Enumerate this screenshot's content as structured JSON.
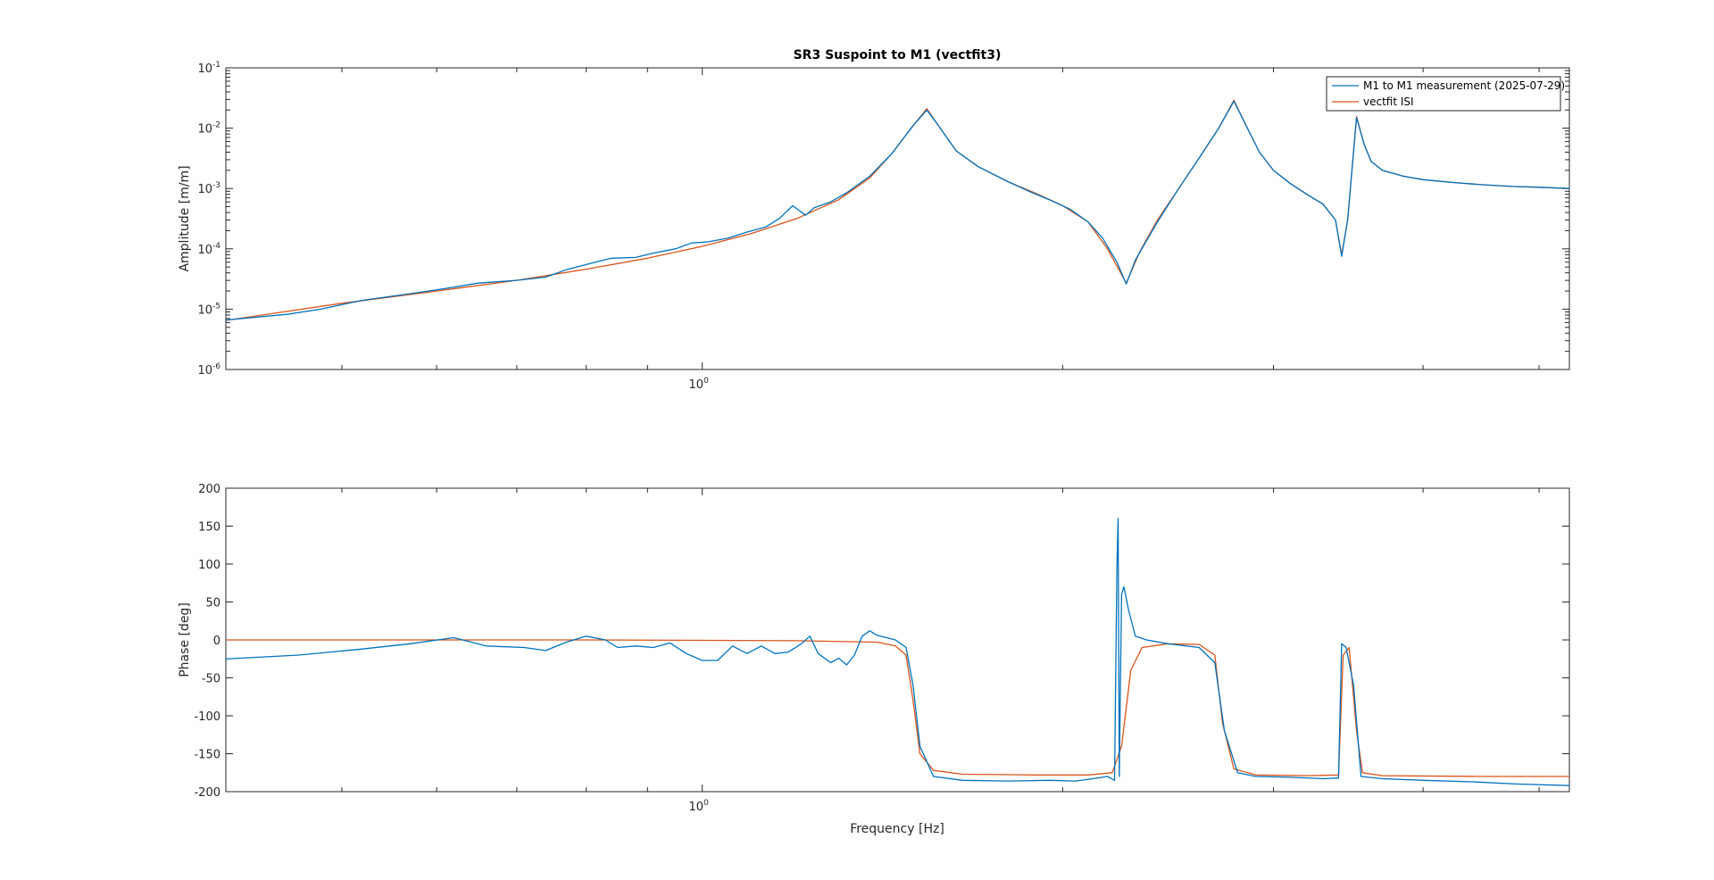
{
  "chart_data": [
    {
      "type": "line",
      "title": "SR3 Suspoint to M1 (vectfit3)",
      "xlabel": "",
      "ylabel": "Amplitude [m/m]",
      "xscale": "log",
      "yscale": "log",
      "xlim": [
        0.4,
        5.3
      ],
      "ylim": [
        1e-06,
        0.1
      ],
      "x_ticks": [
        {
          "base": "10",
          "exp": "0",
          "value": 1
        }
      ],
      "y_ticks": [
        {
          "base": "10",
          "exp": "-1",
          "value": 0.1
        },
        {
          "base": "10",
          "exp": "-2",
          "value": 0.01
        },
        {
          "base": "10",
          "exp": "-3",
          "value": 0.001
        },
        {
          "base": "10",
          "exp": "-4",
          "value": 0.0001
        },
        {
          "base": "10",
          "exp": "-5",
          "value": 1e-05
        },
        {
          "base": "10",
          "exp": "-6",
          "value": 1e-06
        }
      ],
      "grid": false,
      "legend_position": "top-right",
      "series": [
        {
          "name": "M1 to M1 measurement (2025-07-29)",
          "color": "#0072BD",
          "points": [
            [
              0.4,
              6.6e-06
            ],
            [
              0.45,
              8.2e-06
            ],
            [
              0.48,
              1e-05
            ],
            [
              0.52,
              1.4e-05
            ],
            [
              0.57,
              1.8e-05
            ],
            [
              0.61,
              2.2e-05
            ],
            [
              0.65,
              2.7e-05
            ],
            [
              0.7,
              3e-05
            ],
            [
              0.74,
              3.4e-05
            ],
            [
              0.77,
              4.5e-05
            ],
            [
              0.8,
              5.5e-05
            ],
            [
              0.84,
              7e-05
            ],
            [
              0.88,
              7.2e-05
            ],
            [
              0.91,
              8.5e-05
            ],
            [
              0.95,
              0.0001
            ],
            [
              0.98,
              0.000125
            ],
            [
              1.01,
              0.00013
            ],
            [
              1.05,
              0.00015
            ],
            [
              1.09,
              0.00019
            ],
            [
              1.13,
              0.00023
            ],
            [
              1.16,
              0.00032
            ],
            [
              1.19,
              0.00052
            ],
            [
              1.22,
              0.00036
            ],
            [
              1.24,
              0.00048
            ],
            [
              1.28,
              0.0006
            ],
            [
              1.32,
              0.00085
            ],
            [
              1.38,
              0.0016
            ],
            [
              1.44,
              0.0038
            ],
            [
              1.5,
              0.011
            ],
            [
              1.54,
              0.02
            ],
            [
              1.57,
              0.012
            ],
            [
              1.63,
              0.0042
            ],
            [
              1.7,
              0.0023
            ],
            [
              1.8,
              0.0013
            ],
            [
              1.88,
              0.00088
            ],
            [
              1.96,
              0.00062
            ],
            [
              2.03,
              0.00045
            ],
            [
              2.1,
              0.00028
            ],
            [
              2.16,
              0.00015
            ],
            [
              2.22,
              6e-05
            ],
            [
              2.26,
              2.6e-05
            ],
            [
              2.3,
              6.5e-05
            ],
            [
              2.4,
              0.00028
            ],
            [
              2.5,
              0.001
            ],
            [
              2.6,
              0.0032
            ],
            [
              2.7,
              0.01
            ],
            [
              2.78,
              0.028
            ],
            [
              2.84,
              0.012
            ],
            [
              2.92,
              0.004
            ],
            [
              3.0,
              0.002
            ],
            [
              3.1,
              0.0012
            ],
            [
              3.2,
              0.0008
            ],
            [
              3.3,
              0.00055
            ],
            [
              3.38,
              0.0003
            ],
            [
              3.42,
              7.5e-05
            ],
            [
              3.46,
              0.0003
            ],
            [
              3.52,
              0.015
            ],
            [
              3.57,
              0.0055
            ],
            [
              3.62,
              0.0028
            ],
            [
              3.7,
              0.002
            ],
            [
              3.85,
              0.0016
            ],
            [
              4.0,
              0.0014
            ],
            [
              4.25,
              0.00125
            ],
            [
              4.5,
              0.00115
            ],
            [
              4.75,
              0.00108
            ],
            [
              5.0,
              0.00105
            ],
            [
              5.3,
              0.001
            ]
          ]
        },
        {
          "name": "vectfit ISI",
          "color": "#D95319",
          "points": [
            [
              0.4,
              6.5e-06
            ],
            [
              0.5,
              1.25e-05
            ],
            [
              0.6,
              2e-05
            ],
            [
              0.7,
              3e-05
            ],
            [
              0.8,
              4.6e-05
            ],
            [
              0.9,
              7e-05
            ],
            [
              1.0,
              0.00011
            ],
            [
              1.1,
              0.00018
            ],
            [
              1.2,
              0.00032
            ],
            [
              1.3,
              0.00065
            ],
            [
              1.38,
              0.0015
            ],
            [
              1.44,
              0.0038
            ],
            [
              1.5,
              0.011
            ],
            [
              1.54,
              0.021
            ],
            [
              1.57,
              0.012
            ],
            [
              1.63,
              0.0042
            ],
            [
              1.7,
              0.0023
            ],
            [
              1.8,
              0.0013
            ],
            [
              1.9,
              0.00083
            ],
            [
              2.0,
              0.00052
            ],
            [
              2.1,
              0.00028
            ],
            [
              2.18,
              0.0001
            ],
            [
              2.26,
              2.7e-05
            ],
            [
              2.32,
              9e-05
            ],
            [
              2.4,
              0.0003
            ],
            [
              2.5,
              0.001
            ],
            [
              2.6,
              0.0032
            ],
            [
              2.7,
              0.01
            ],
            [
              2.78,
              0.029
            ],
            [
              2.84,
              0.012
            ],
            [
              2.92,
              0.004
            ],
            [
              3.0,
              0.002
            ],
            [
              3.1,
              0.0012
            ],
            [
              3.2,
              0.0008
            ],
            [
              3.3,
              0.00055
            ],
            [
              3.38,
              0.0003
            ],
            [
              3.42,
              8e-05
            ],
            [
              3.46,
              0.0003
            ],
            [
              3.52,
              0.0155
            ],
            [
              3.57,
              0.0055
            ],
            [
              3.62,
              0.0028
            ],
            [
              3.7,
              0.002
            ],
            [
              3.85,
              0.0016
            ],
            [
              4.0,
              0.0014
            ],
            [
              4.25,
              0.00125
            ],
            [
              4.5,
              0.00115
            ],
            [
              4.75,
              0.00108
            ],
            [
              5.0,
              0.00105
            ],
            [
              5.3,
              0.001
            ]
          ]
        }
      ]
    },
    {
      "type": "line",
      "title": "",
      "xlabel": "Frequency [Hz]",
      "ylabel": "Phase [deg]",
      "xscale": "log",
      "yscale": "linear",
      "xlim": [
        0.4,
        5.3
      ],
      "ylim": [
        -200,
        200
      ],
      "x_ticks": [
        {
          "base": "10",
          "exp": "0",
          "value": 1
        }
      ],
      "y_ticks": [
        {
          "label": "200",
          "value": 200
        },
        {
          "label": "150",
          "value": 150
        },
        {
          "label": "100",
          "value": 100
        },
        {
          "label": "50",
          "value": 50
        },
        {
          "label": "0",
          "value": 0
        },
        {
          "label": "-50",
          "value": -50
        },
        {
          "label": "-100",
          "value": -100
        },
        {
          "label": "-150",
          "value": -150
        },
        {
          "label": "-200",
          "value": -200
        }
      ],
      "grid": false,
      "series": [
        {
          "name": "M1 to M1 measurement (2025-07-29)",
          "color": "#0072BD",
          "points": [
            [
              0.4,
              -25
            ],
            [
              0.46,
              -20
            ],
            [
              0.52,
              -12
            ],
            [
              0.57,
              -5
            ],
            [
              0.62,
              3
            ],
            [
              0.66,
              -8
            ],
            [
              0.71,
              -10
            ],
            [
              0.74,
              -14
            ],
            [
              0.77,
              -3
            ],
            [
              0.8,
              5
            ],
            [
              0.83,
              0
            ],
            [
              0.85,
              -10
            ],
            [
              0.88,
              -8
            ],
            [
              0.91,
              -10
            ],
            [
              0.94,
              -4
            ],
            [
              0.97,
              -18
            ],
            [
              1.0,
              -27
            ],
            [
              1.03,
              -27
            ],
            [
              1.06,
              -8
            ],
            [
              1.09,
              -18
            ],
            [
              1.12,
              -8
            ],
            [
              1.15,
              -18
            ],
            [
              1.18,
              -16
            ],
            [
              1.21,
              -5
            ],
            [
              1.23,
              5
            ],
            [
              1.25,
              -18
            ],
            [
              1.28,
              -30
            ],
            [
              1.3,
              -24
            ],
            [
              1.32,
              -33
            ],
            [
              1.34,
              -20
            ],
            [
              1.36,
              5
            ],
            [
              1.38,
              12
            ],
            [
              1.4,
              6
            ],
            [
              1.45,
              0
            ],
            [
              1.48,
              -10
            ],
            [
              1.5,
              -60
            ],
            [
              1.52,
              -140
            ],
            [
              1.56,
              -180
            ],
            [
              1.65,
              -185
            ],
            [
              1.8,
              -186
            ],
            [
              1.95,
              -185
            ],
            [
              2.05,
              -186
            ],
            [
              2.12,
              -183
            ],
            [
              2.18,
              -180
            ],
            [
              2.21,
              -185
            ],
            [
              2.22,
              100
            ],
            [
              2.225,
              160
            ],
            [
              2.23,
              -180
            ],
            [
              2.24,
              60
            ],
            [
              2.25,
              70
            ],
            [
              2.27,
              40
            ],
            [
              2.3,
              5
            ],
            [
              2.35,
              0
            ],
            [
              2.45,
              -5
            ],
            [
              2.6,
              -10
            ],
            [
              2.68,
              -30
            ],
            [
              2.73,
              -120
            ],
            [
              2.8,
              -175
            ],
            [
              2.9,
              -180
            ],
            [
              3.1,
              -181
            ],
            [
              3.3,
              -183
            ],
            [
              3.4,
              -182
            ],
            [
              3.42,
              -5
            ],
            [
              3.45,
              -10
            ],
            [
              3.5,
              -60
            ],
            [
              3.55,
              -180
            ],
            [
              3.7,
              -183
            ],
            [
              4.0,
              -185
            ],
            [
              4.4,
              -187
            ],
            [
              4.8,
              -190
            ],
            [
              5.3,
              -192
            ]
          ]
        },
        {
          "name": "vectfit ISI",
          "color": "#D95319",
          "points": [
            [
              0.4,
              0
            ],
            [
              0.8,
              0
            ],
            [
              1.2,
              -1
            ],
            [
              1.4,
              -3
            ],
            [
              1.45,
              -8
            ],
            [
              1.48,
              -20
            ],
            [
              1.5,
              -80
            ],
            [
              1.52,
              -150
            ],
            [
              1.56,
              -172
            ],
            [
              1.65,
              -177
            ],
            [
              1.9,
              -178
            ],
            [
              2.1,
              -178
            ],
            [
              2.2,
              -175
            ],
            [
              2.24,
              -140
            ],
            [
              2.28,
              -40
            ],
            [
              2.33,
              -10
            ],
            [
              2.45,
              -5
            ],
            [
              2.6,
              -6
            ],
            [
              2.68,
              -20
            ],
            [
              2.72,
              -110
            ],
            [
              2.78,
              -170
            ],
            [
              2.9,
              -178
            ],
            [
              3.2,
              -179
            ],
            [
              3.4,
              -178
            ],
            [
              3.43,
              -20
            ],
            [
              3.47,
              -10
            ],
            [
              3.52,
              -120
            ],
            [
              3.56,
              -175
            ],
            [
              3.7,
              -179
            ],
            [
              4.5,
              -180
            ],
            [
              5.3,
              -180
            ]
          ]
        }
      ]
    }
  ]
}
